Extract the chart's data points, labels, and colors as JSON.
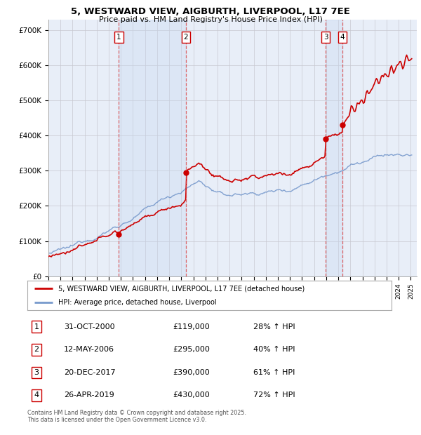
{
  "title": "5, WESTWARD VIEW, AIGBURTH, LIVERPOOL, L17 7EE",
  "subtitle": "Price paid vs. HM Land Registry's House Price Index (HPI)",
  "ylim": [
    0,
    730000
  ],
  "yticks": [
    0,
    100000,
    200000,
    300000,
    400000,
    500000,
    600000,
    700000
  ],
  "ytick_labels": [
    "£0",
    "£100K",
    "£200K",
    "£300K",
    "£400K",
    "£500K",
    "£600K",
    "£700K"
  ],
  "background_color": "#e8eef8",
  "grid_color": "#c8c8d0",
  "sale_year_nums": [
    2000.833,
    2006.375,
    2017.958,
    2019.333
  ],
  "sale_prices": [
    119000,
    295000,
    390000,
    430000
  ],
  "sale_labels": [
    "1",
    "2",
    "3",
    "4"
  ],
  "legend_house": "5, WESTWARD VIEW, AIGBURTH, LIVERPOOL, L17 7EE (detached house)",
  "legend_hpi": "HPI: Average price, detached house, Liverpool",
  "footer": "Contains HM Land Registry data © Crown copyright and database right 2025.\nThis data is licensed under the Open Government Licence v3.0.",
  "table_rows": [
    [
      "1",
      "31-OCT-2000",
      "£119,000",
      "28% ↑ HPI"
    ],
    [
      "2",
      "12-MAY-2006",
      "£295,000",
      "40% ↑ HPI"
    ],
    [
      "3",
      "20-DEC-2017",
      "£390,000",
      "61% ↑ HPI"
    ],
    [
      "4",
      "26-APR-2019",
      "£430,000",
      "72% ↑ HPI"
    ]
  ],
  "house_color": "#cc0000",
  "hpi_color": "#7799cc",
  "vline_color": "#dd4444",
  "shade_color": "#c8d8f0"
}
